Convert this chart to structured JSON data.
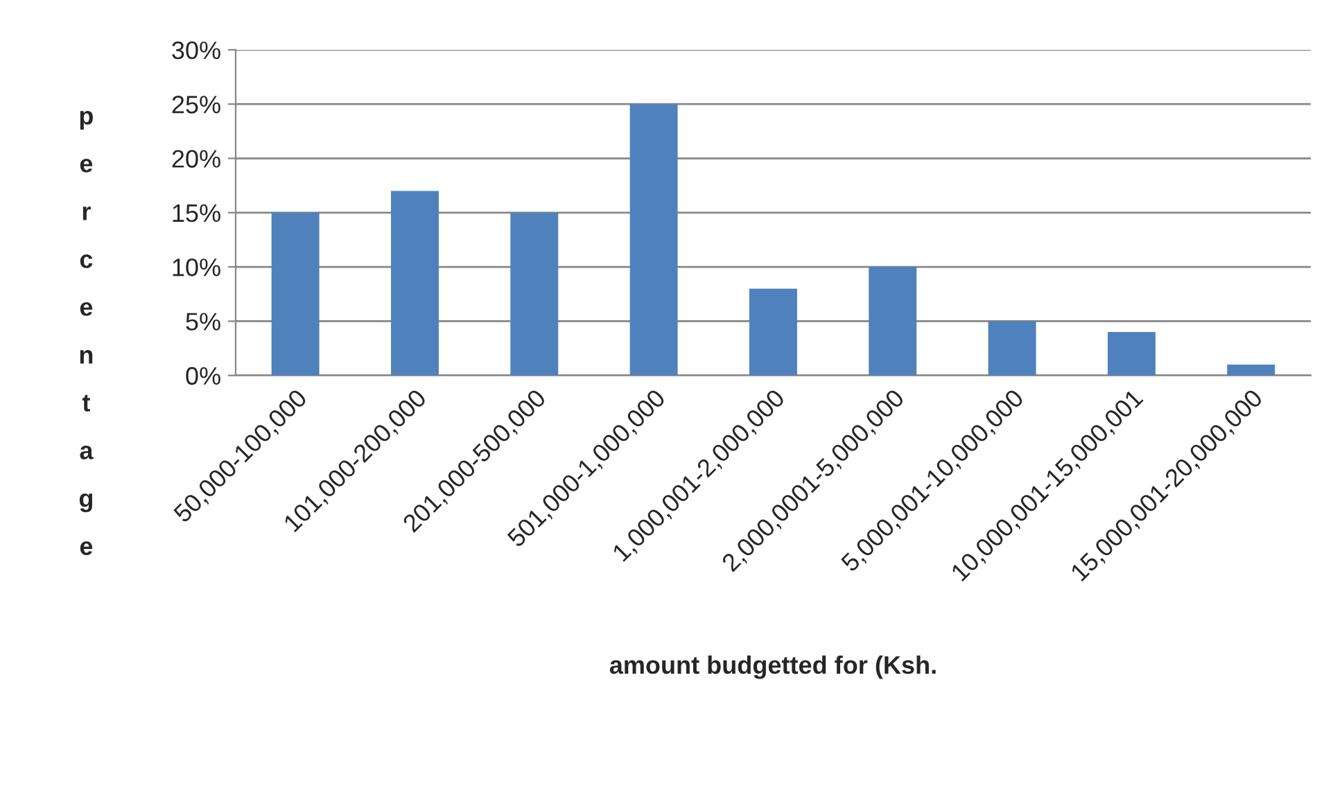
{
  "chart_data": {
    "type": "bar",
    "xlabel": "amount budgetted for (Ksh.",
    "ylabel": "percentage",
    "categories": [
      "50,000-100,000",
      "101,000-200,000",
      "201,000-500,000",
      "501,000-1,000,000",
      "1,000,001-2,000,000",
      "2,000,0001-5,000,000",
      "5,000,001-10,000,000",
      "10,000,001-15,000,001",
      "15,000,001-20,000,000"
    ],
    "values": [
      15,
      17,
      15,
      25,
      8,
      10,
      5,
      4,
      1
    ],
    "color": "#4f81bd",
    "ylim": [
      0,
      30
    ],
    "yticks": [
      {
        "value": 0,
        "label": "0%"
      },
      {
        "value": 5,
        "label": "5%"
      },
      {
        "value": 10,
        "label": "10%"
      },
      {
        "value": 15,
        "label": "15%"
      },
      {
        "value": 20,
        "label": "20%"
      },
      {
        "value": 25,
        "label": "25%"
      },
      {
        "value": 30,
        "label": "30%"
      }
    ],
    "grid": "y",
    "legend": false
  }
}
